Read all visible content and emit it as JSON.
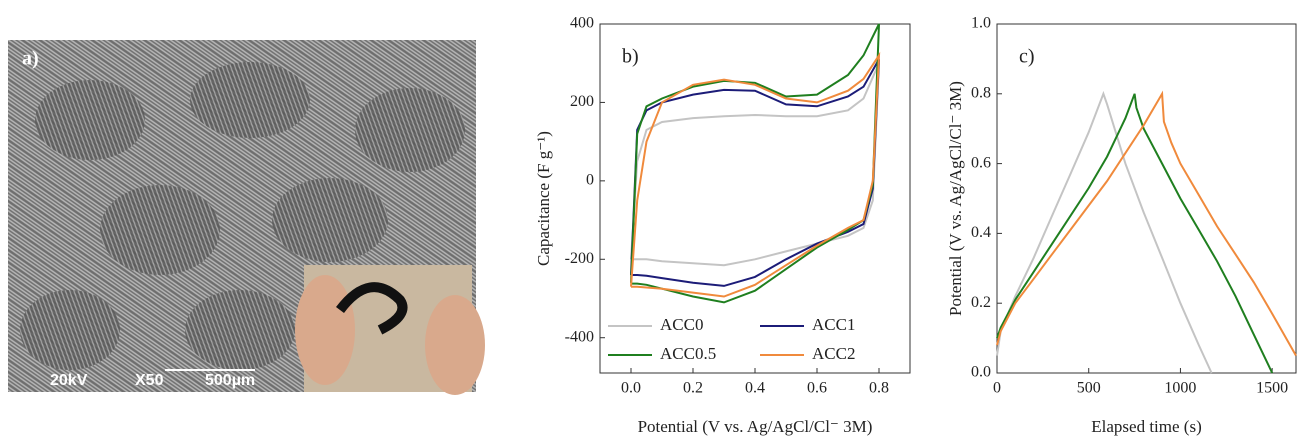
{
  "panel_a": {
    "label": "a)",
    "captions": [
      "20kV",
      "X50",
      "500µm"
    ]
  },
  "chart_data": [
    {
      "type": "line",
      "title": "b)",
      "xlabel": "Potential (V vs. Ag/AgCl/Cl⁻ 3M)",
      "ylabel": "Capacitance (F g⁻¹)",
      "x": [
        0,
        0.02,
        0.05,
        0.1,
        0.2,
        0.3,
        0.4,
        0.5,
        0.6,
        0.7,
        0.75,
        0.8,
        0.78,
        0.75,
        0.7,
        0.6,
        0.5,
        0.4,
        0.3,
        0.2,
        0.1,
        0.05,
        0.02,
        0
      ],
      "series": [
        {
          "name": "ACC0",
          "color": "#c4c4c4",
          "values": [
            -200,
            50,
            130,
            150,
            160,
            165,
            168,
            165,
            165,
            180,
            210,
            300,
            -50,
            -120,
            -140,
            -160,
            -180,
            -200,
            -215,
            -210,
            -205,
            -200,
            -200,
            -200
          ]
        },
        {
          "name": "ACC1",
          "color": "#1c1c78",
          "values": [
            -240,
            130,
            180,
            200,
            220,
            232,
            230,
            195,
            190,
            215,
            240,
            310,
            -20,
            -110,
            -130,
            -160,
            -200,
            -245,
            -268,
            -260,
            -248,
            -242,
            -240,
            -240
          ]
        },
        {
          "name": "ACC0.5",
          "color": "#1f7f1f",
          "values": [
            -260,
            120,
            190,
            210,
            240,
            255,
            250,
            215,
            220,
            270,
            320,
            400,
            -10,
            -100,
            -125,
            -170,
            -225,
            -280,
            -310,
            -295,
            -275,
            -265,
            -262,
            -262
          ]
        },
        {
          "name": "ACC2",
          "color": "#f08a3c",
          "values": [
            -270,
            -50,
            100,
            200,
            245,
            258,
            245,
            210,
            200,
            230,
            260,
            320,
            0,
            -100,
            -120,
            -165,
            -215,
            -265,
            -295,
            -285,
            -275,
            -272,
            -270,
            -270
          ]
        }
      ],
      "xlim": [
        -0.1,
        0.9
      ],
      "xticks": [
        {
          "value": 0,
          "label": "0.0"
        },
        0.2,
        0.4,
        0.6,
        0.8
      ],
      "ylim": [
        -490,
        400
      ],
      "yticks": [
        -400,
        -200,
        0,
        200,
        400
      ],
      "legend": "lower center"
    },
    {
      "type": "line",
      "title": "c)",
      "xlabel": "Elapsed time (s)",
      "ylabel": "Potential (V vs. Ag/AgCl/Cl⁻ 3M)",
      "series": [
        {
          "color": "#c4c4c4",
          "x": [
            0,
            20,
            100,
            200,
            300,
            400,
            500,
            580,
            600,
            700,
            800,
            900,
            1000,
            1100,
            1170
          ],
          "values": [
            0.05,
            0.12,
            0.22,
            0.33,
            0.45,
            0.57,
            0.69,
            0.8,
            0.77,
            0.6,
            0.46,
            0.33,
            0.2,
            0.08,
            0
          ]
        },
        {
          "color": "#1f7f1f",
          "x": [
            0,
            20,
            100,
            200,
            300,
            400,
            500,
            600,
            700,
            750,
            760,
            800,
            900,
            1000,
            1100,
            1200,
            1300,
            1400,
            1500
          ],
          "values": [
            0.1,
            0.13,
            0.21,
            0.29,
            0.37,
            0.45,
            0.53,
            0.62,
            0.73,
            0.8,
            0.76,
            0.7,
            0.6,
            0.5,
            0.41,
            0.32,
            0.22,
            0.11,
            0
          ]
        },
        {
          "color": "#f08a3c",
          "x": [
            0,
            20,
            100,
            200,
            300,
            400,
            500,
            600,
            700,
            800,
            900,
            910,
            950,
            1000,
            1100,
            1200,
            1300,
            1400,
            1500,
            1630
          ],
          "values": [
            0.08,
            0.12,
            0.2,
            0.27,
            0.34,
            0.41,
            0.48,
            0.55,
            0.63,
            0.71,
            0.8,
            0.72,
            0.66,
            0.6,
            0.51,
            0.42,
            0.34,
            0.26,
            0.17,
            0.05
          ]
        }
      ],
      "xlim": [
        0,
        1630
      ],
      "xticks": [
        0,
        500,
        1000,
        1500
      ],
      "ylim": [
        0,
        1.0
      ],
      "yticks": [
        {
          "value": 0,
          "label": "0.0"
        },
        0.2,
        0.4,
        0.6,
        0.8,
        {
          "value": 1.0,
          "label": "1.0"
        }
      ]
    }
  ]
}
